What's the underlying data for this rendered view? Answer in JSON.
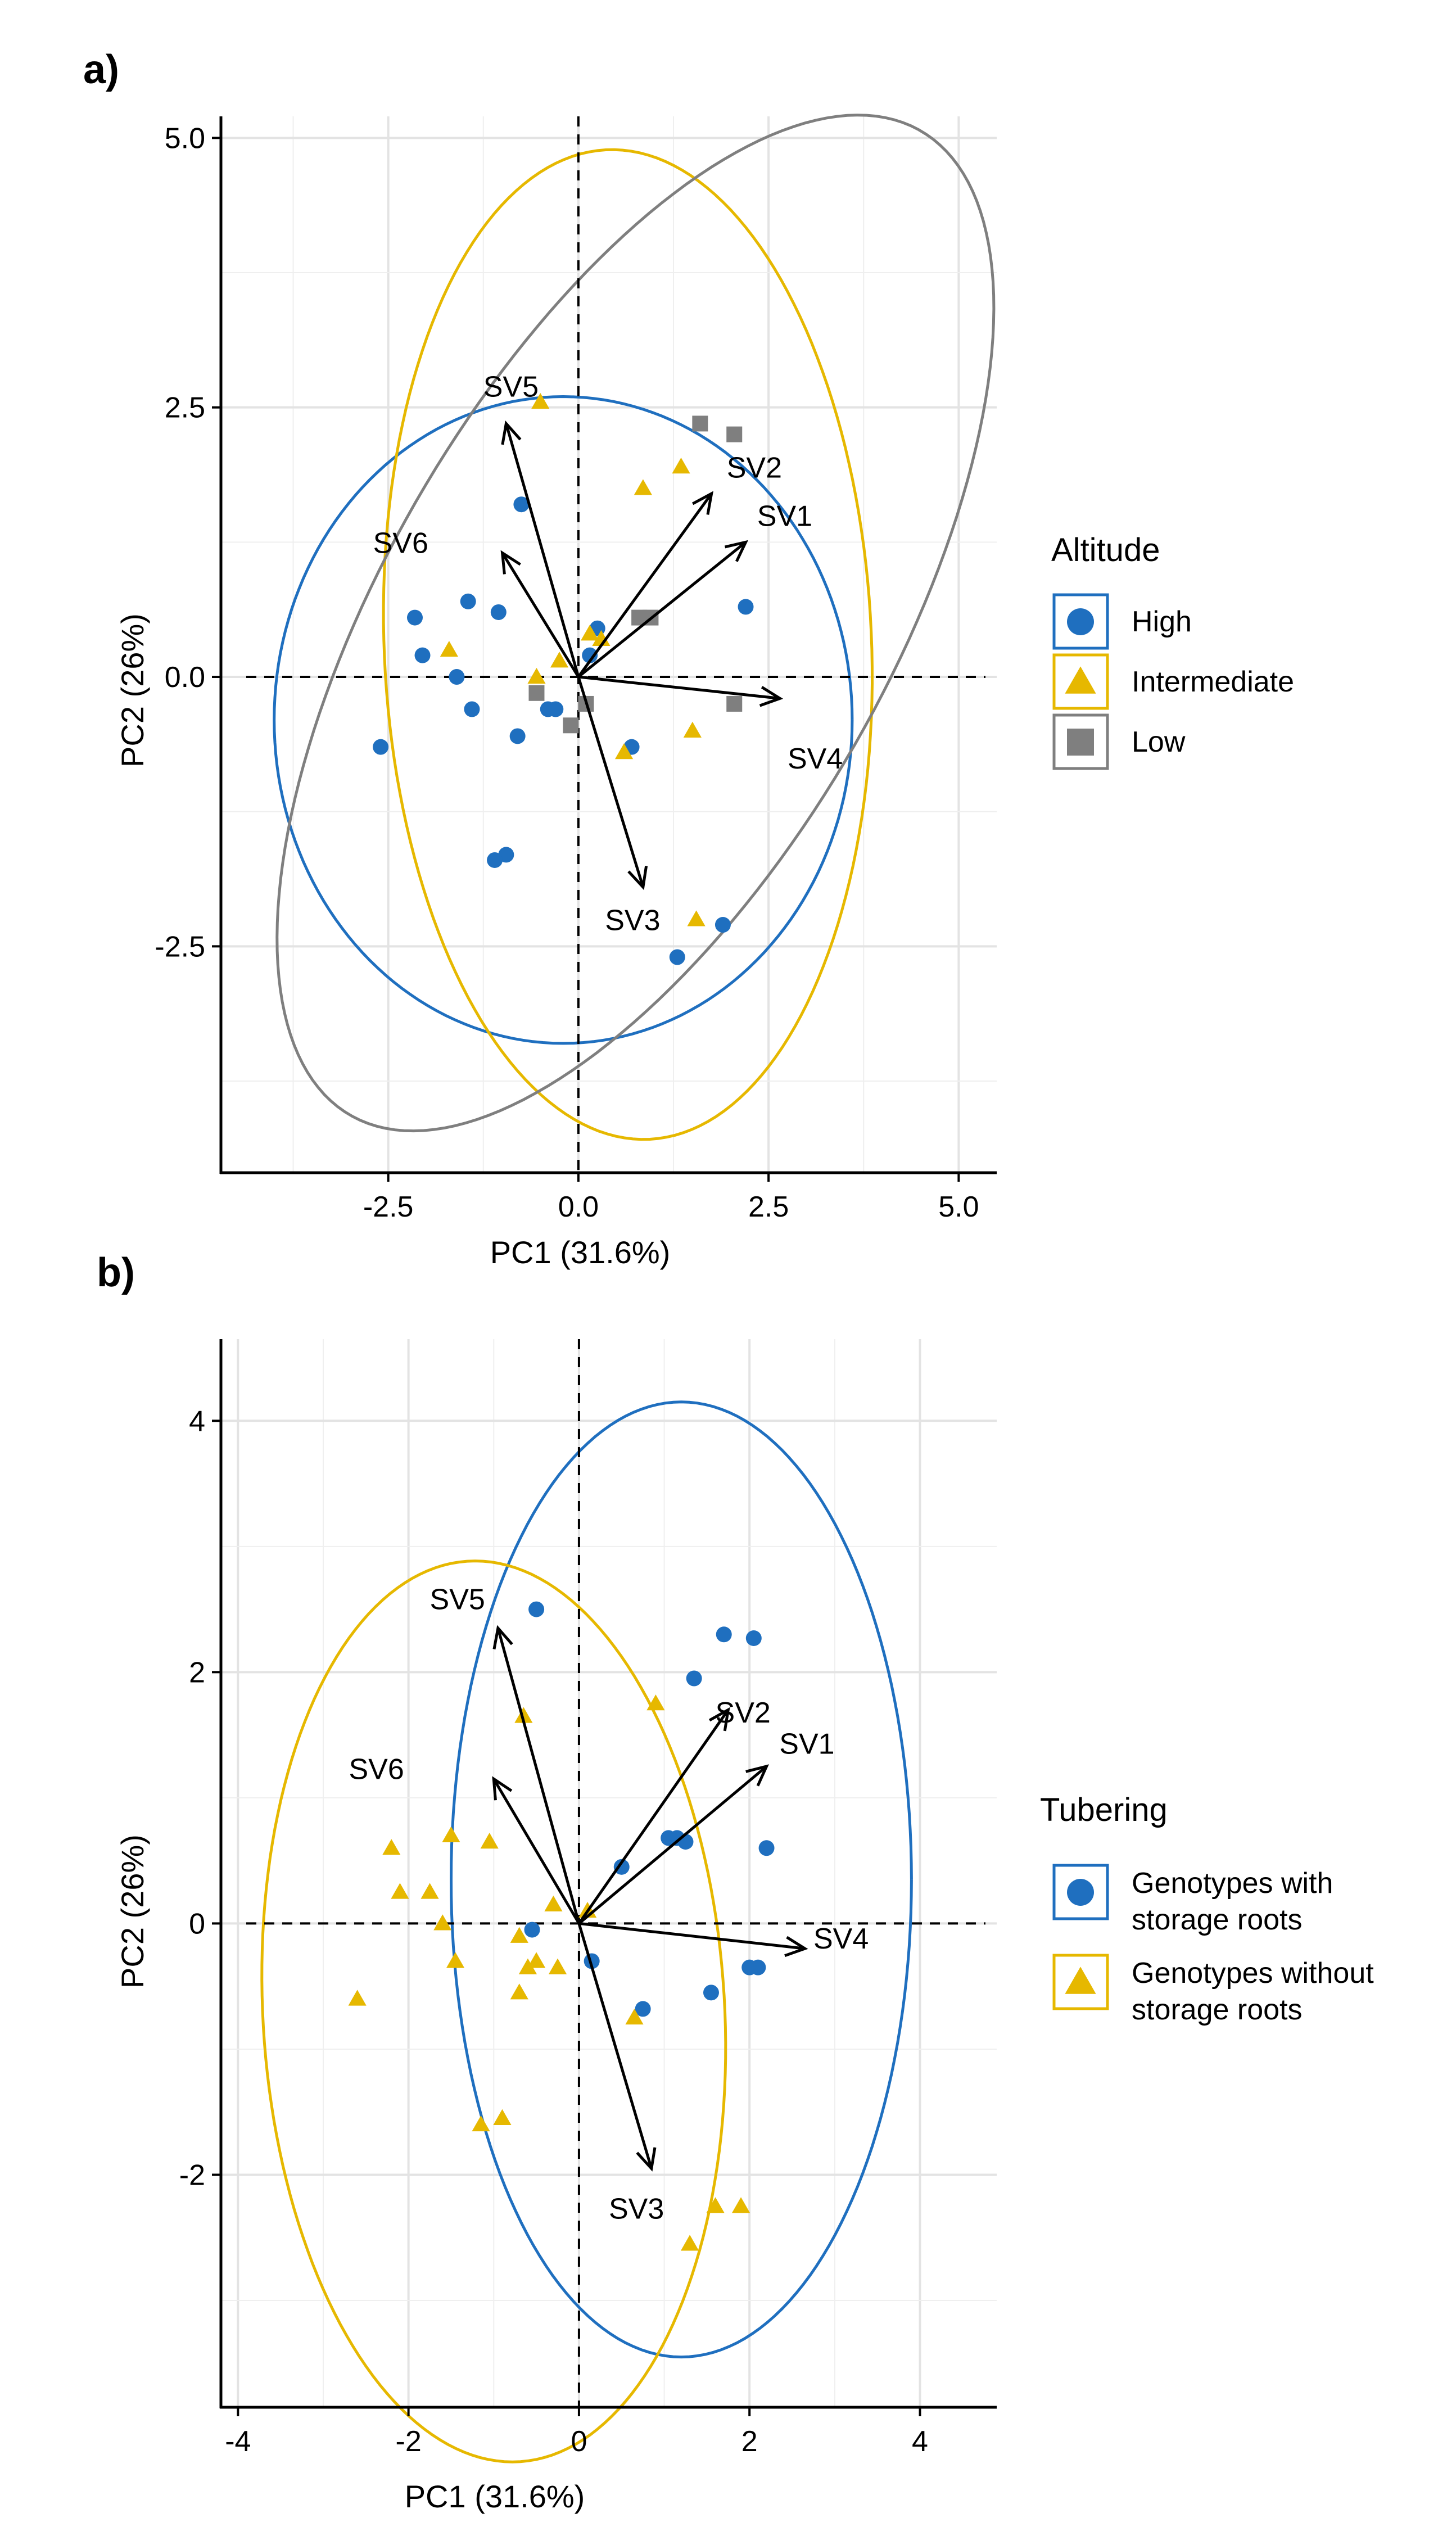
{
  "chart_data": [
    {
      "panel_label": "a)",
      "type": "scatter",
      "title": "",
      "xlabel": "PC1 (31.6%)",
      "ylabel": "PC2 (26%)",
      "xlim": [
        -4.7,
        5.5
      ],
      "ylim": [
        -4.6,
        5.2
      ],
      "xticks": [
        -2.5,
        0.0,
        2.5,
        5.0
      ],
      "xtick_labels": [
        "-2.5",
        "0.0",
        "2.5",
        "5.0"
      ],
      "yticks": [
        -2.5,
        0.0,
        2.5,
        5.0
      ],
      "ytick_labels": [
        "-2.5",
        "0.0",
        "2.5",
        "5.0"
      ],
      "grid": true,
      "legend": {
        "title": "Altitude",
        "position": "right",
        "entries": [
          {
            "label": "High",
            "color": "#1f6fbf",
            "shape": "circle"
          },
          {
            "label": "Intermediate",
            "color": "#e6b800",
            "shape": "triangle"
          },
          {
            "label": "Low",
            "color": "#7f7f7f",
            "shape": "square"
          }
        ]
      },
      "series": [
        {
          "name": "High",
          "color": "#1f6fbf",
          "shape": "circle",
          "points": [
            [
              -2.6,
              -0.65
            ],
            [
              -2.15,
              0.55
            ],
            [
              -2.05,
              0.2
            ],
            [
              -1.6,
              0.0
            ],
            [
              -1.45,
              0.7
            ],
            [
              -1.4,
              -0.3
            ],
            [
              -1.05,
              0.6
            ],
            [
              -0.75,
              1.6
            ],
            [
              -0.8,
              -0.55
            ],
            [
              -0.95,
              -1.65
            ],
            [
              -1.1,
              -1.7
            ],
            [
              -0.4,
              -0.3
            ],
            [
              -0.3,
              -0.3
            ],
            [
              0.15,
              0.2
            ],
            [
              0.25,
              0.45
            ],
            [
              0.7,
              -0.65
            ],
            [
              2.2,
              0.65
            ],
            [
              1.3,
              -2.6
            ],
            [
              1.9,
              -2.3
            ]
          ]
        },
        {
          "name": "Intermediate",
          "color": "#e6b800",
          "shape": "triangle",
          "points": [
            [
              -1.7,
              0.25
            ],
            [
              -0.55,
              0.0
            ],
            [
              -0.25,
              0.15
            ],
            [
              0.15,
              0.4
            ],
            [
              0.3,
              0.35
            ],
            [
              -0.5,
              2.55
            ],
            [
              0.85,
              1.75
            ],
            [
              1.35,
              1.95
            ],
            [
              1.5,
              -0.5
            ],
            [
              0.6,
              -0.7
            ],
            [
              1.55,
              -2.25
            ]
          ]
        },
        {
          "name": "Low",
          "color": "#7f7f7f",
          "shape": "square",
          "points": [
            [
              -0.55,
              -0.15
            ],
            [
              0.1,
              -0.25
            ],
            [
              0.8,
              0.55
            ],
            [
              0.95,
              0.55
            ],
            [
              1.6,
              2.35
            ],
            [
              2.05,
              2.25
            ],
            [
              2.05,
              -0.25
            ],
            [
              -0.1,
              -0.45
            ]
          ]
        }
      ],
      "ellipses": [
        {
          "name": "High",
          "color": "#1f6fbf",
          "cx": -0.2,
          "cy": -0.4,
          "rx": 3.8,
          "ry": 3.0,
          "angle": 0
        },
        {
          "name": "Intermediate",
          "color": "#e6b800",
          "cx": 0.65,
          "cy": 0.3,
          "rx": 3.2,
          "ry": 4.6,
          "angle": 5
        },
        {
          "name": "Low",
          "color": "#7f7f7f",
          "cx": 0.75,
          "cy": 0.5,
          "rx": 6.0,
          "ry": 2.9,
          "angle": 45
        }
      ],
      "loadings": [
        {
          "name": "SV1",
          "x": 2.2,
          "y": 1.25
        },
        {
          "name": "SV2",
          "x": 1.75,
          "y": 1.7
        },
        {
          "name": "SV3",
          "x": 0.85,
          "y": -1.95
        },
        {
          "name": "SV4",
          "x": 2.65,
          "y": -0.2
        },
        {
          "name": "SV5",
          "x": -0.95,
          "y": 2.35
        },
        {
          "name": "SV6",
          "x": -1.0,
          "y": 1.15
        }
      ],
      "loading_label_offsets": {
        "SV1": [
          0.15,
          0.15
        ],
        "SV2": [
          0.2,
          0.15
        ],
        "SV3": [
          -0.5,
          -0.4
        ],
        "SV4": [
          0.1,
          -0.65
        ],
        "SV5": [
          -0.3,
          0.25
        ],
        "SV6": [
          -1.7,
          0.0
        ]
      }
    },
    {
      "panel_label": "b)",
      "type": "scatter",
      "title": "",
      "xlabel": "PC1 (31.6%)",
      "ylabel": "PC2 (26%)",
      "xlim": [
        -4.2,
        4.9
      ],
      "ylim": [
        -3.85,
        4.65
      ],
      "xticks": [
        -4,
        -2,
        0,
        2,
        4
      ],
      "xtick_labels": [
        "-4",
        "-2",
        "0",
        "2",
        "4"
      ],
      "yticks": [
        -2,
        0,
        2,
        4
      ],
      "ytick_labels": [
        "-2",
        "0",
        "2",
        "4"
      ],
      "grid": true,
      "legend": {
        "title": "Tubering",
        "position": "right",
        "entries": [
          {
            "label_lines": [
              "Genotypes with",
              "storage roots"
            ],
            "color": "#1f6fbf",
            "shape": "circle"
          },
          {
            "label_lines": [
              "Genotypes without",
              "storage roots"
            ],
            "color": "#e6b800",
            "shape": "triangle"
          }
        ]
      },
      "series": [
        {
          "name": "Genotypes with storage roots",
          "color": "#1f6fbf",
          "shape": "circle",
          "points": [
            [
              -0.5,
              2.5
            ],
            [
              1.7,
              2.3
            ],
            [
              2.05,
              2.27
            ],
            [
              1.35,
              1.95
            ],
            [
              1.05,
              0.68
            ],
            [
              1.15,
              0.68
            ],
            [
              1.25,
              0.65
            ],
            [
              0.5,
              0.45
            ],
            [
              2.2,
              0.6
            ],
            [
              2.0,
              -0.35
            ],
            [
              2.1,
              -0.35
            ],
            [
              0.15,
              -0.3
            ],
            [
              -0.55,
              -0.05
            ],
            [
              0.75,
              -0.68
            ],
            [
              1.55,
              -0.55
            ]
          ]
        },
        {
          "name": "Genotypes without storage roots",
          "color": "#e6b800",
          "shape": "triangle",
          "points": [
            [
              -0.65,
              1.65
            ],
            [
              0.9,
              1.75
            ],
            [
              -2.2,
              0.6
            ],
            [
              -1.5,
              0.7
            ],
            [
              -1.05,
              0.65
            ],
            [
              -2.1,
              0.25
            ],
            [
              -1.75,
              0.25
            ],
            [
              -1.6,
              0.0
            ],
            [
              -0.7,
              -0.1
            ],
            [
              -0.3,
              0.15
            ],
            [
              -1.45,
              -0.3
            ],
            [
              -0.6,
              -0.35
            ],
            [
              -0.5,
              -0.3
            ],
            [
              -0.25,
              -0.35
            ],
            [
              -0.7,
              -0.55
            ],
            [
              0.1,
              0.1
            ],
            [
              0.65,
              -0.75
            ],
            [
              -2.6,
              -0.6
            ],
            [
              -1.15,
              -1.6
            ],
            [
              -0.9,
              -1.55
            ],
            [
              1.6,
              -2.25
            ],
            [
              1.9,
              -2.25
            ],
            [
              1.3,
              -2.55
            ]
          ]
        }
      ],
      "ellipses": [
        {
          "name": "Genotypes with storage roots",
          "color": "#1f6fbf",
          "cx": 1.2,
          "cy": 0.35,
          "rx": 2.7,
          "ry": 3.8,
          "angle": 0
        },
        {
          "name": "Genotypes without storage roots",
          "color": "#e6b800",
          "cx": -1.0,
          "cy": -0.7,
          "rx": 2.7,
          "ry": 3.6,
          "angle": 8
        }
      ],
      "loadings": [
        {
          "name": "SV1",
          "x": 2.2,
          "y": 1.25
        },
        {
          "name": "SV2",
          "x": 1.75,
          "y": 1.7
        },
        {
          "name": "SV3",
          "x": 0.85,
          "y": -1.95
        },
        {
          "name": "SV4",
          "x": 2.65,
          "y": -0.2
        },
        {
          "name": "SV5",
          "x": -0.95,
          "y": 2.35
        },
        {
          "name": "SV6",
          "x": -1.0,
          "y": 1.15
        }
      ],
      "loading_label_offsets": {
        "SV1": [
          0.15,
          0.1
        ],
        "SV2": [
          -0.15,
          -0.1
        ],
        "SV3": [
          -0.5,
          -0.4
        ],
        "SV4": [
          0.1,
          0.0
        ],
        "SV5": [
          -0.8,
          0.15
        ],
        "SV6": [
          -1.7,
          0.0
        ]
      }
    }
  ]
}
